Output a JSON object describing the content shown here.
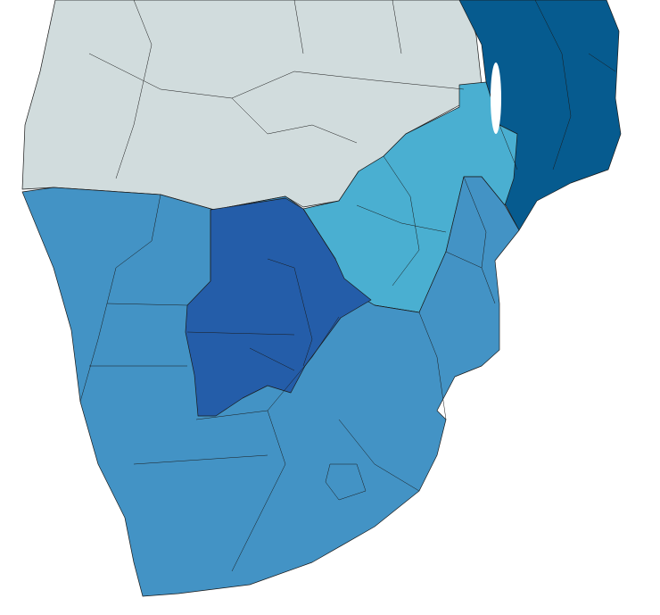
{
  "map": {
    "colors": {
      "background": "#ffffff",
      "no_data": "#d1dcdd",
      "light_blue": "#4aafd1",
      "medium_blue": "#4393c5",
      "dark_blue": "#245da9",
      "deep_blue": "#065b8f",
      "border": "#1a1a1a"
    }
  }
}
